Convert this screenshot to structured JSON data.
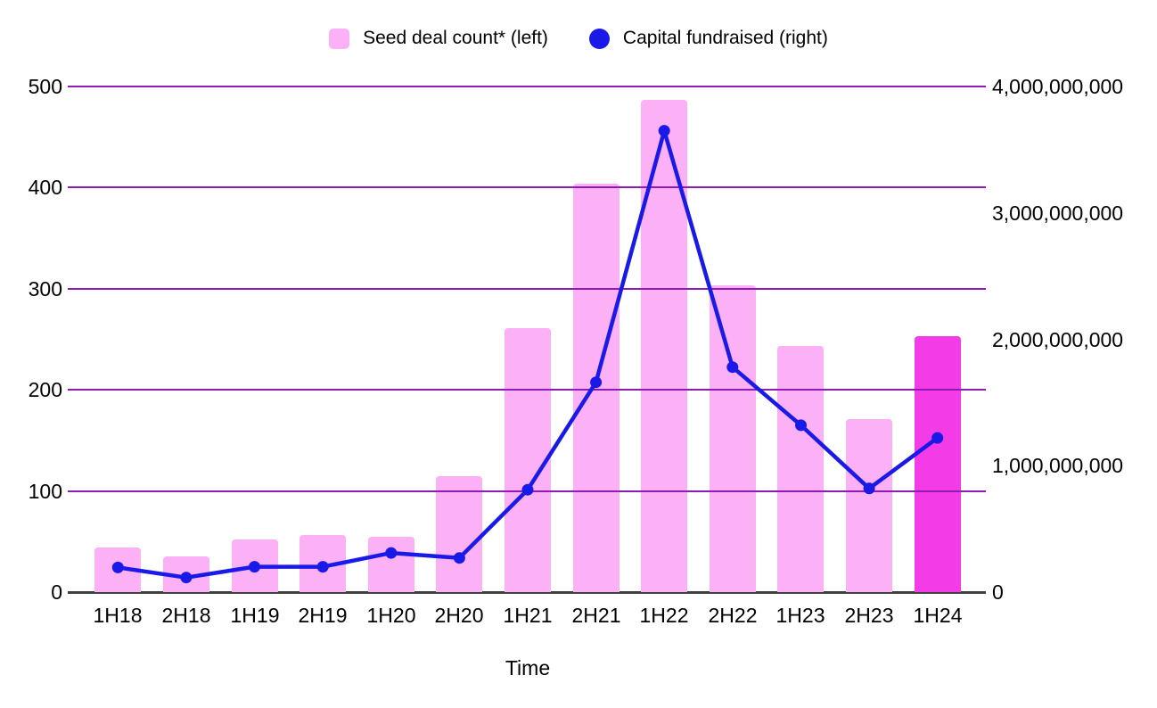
{
  "legend": {
    "items": [
      {
        "label": "Seed deal count* (left)",
        "swatch": "square"
      },
      {
        "label": "Capital fundraised (right)",
        "swatch": "circle"
      }
    ]
  },
  "axis_titles": {
    "x": "Time"
  },
  "colors": {
    "bar_pink": "#FCB0F6",
    "bar_highlight_magenta": "#F33BE8",
    "line_blue": "#1A1AE8",
    "gridline_purple": "#8E1CB4",
    "baseline_dark": "#404040",
    "text": "#000000",
    "background": "#FFFFFF"
  },
  "chart_data": {
    "type": "combo",
    "categories": [
      "1H18",
      "2H18",
      "1H19",
      "2H19",
      "1H20",
      "2H20",
      "1H21",
      "2H21",
      "1H22",
      "2H22",
      "1H23",
      "2H23",
      "1H24"
    ],
    "series": [
      {
        "name": "Seed deal count* (left)",
        "type": "bar",
        "axis": "left",
        "values": [
          44,
          35,
          52,
          56,
          55,
          115,
          261,
          404,
          487,
          303,
          243,
          171,
          253
        ],
        "color": "#FCB0F6",
        "highlight_index": 12,
        "highlight_color": "#F33BE8"
      },
      {
        "name": "Capital fundraised (right)",
        "type": "line",
        "axis": "right",
        "values": [
          195000000,
          115000000,
          200000000,
          200000000,
          310000000,
          270000000,
          810000000,
          1660000000,
          3650000000,
          1780000000,
          1320000000,
          820000000,
          1220000000
        ],
        "color": "#1A1AE8"
      }
    ],
    "xlabel": "Time",
    "left_axis": {
      "min": 0,
      "max": 500,
      "ticks": [
        {
          "label": "0",
          "value": 0
        },
        {
          "label": "100",
          "value": 100
        },
        {
          "label": "200",
          "value": 200
        },
        {
          "label": "300",
          "value": 300
        },
        {
          "label": "400",
          "value": 400
        },
        {
          "label": "500",
          "value": 500
        }
      ]
    },
    "right_axis": {
      "min": 0,
      "max": 4000000000,
      "ticks": [
        {
          "label": "0",
          "value": 0
        },
        {
          "label": "1,000,000,000",
          "value": 1000000000
        },
        {
          "label": "2,000,000,000",
          "value": 2000000000
        },
        {
          "label": "3,000,000,000",
          "value": 3000000000
        },
        {
          "label": "4,000,000,000",
          "value": 4000000000
        }
      ]
    },
    "grid": true,
    "legend_position": "top"
  }
}
